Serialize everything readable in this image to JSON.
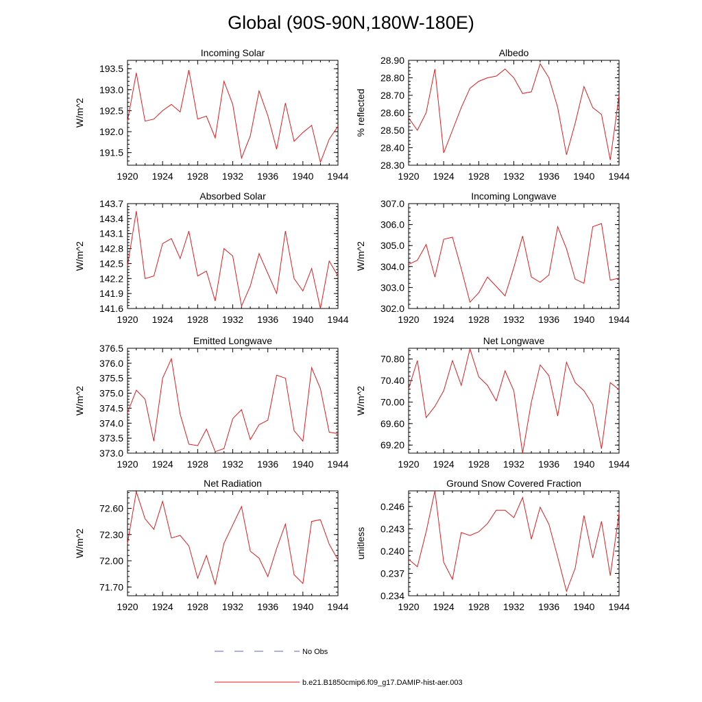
{
  "figure": {
    "title": "Global (90S-90N,180W-180E)"
  },
  "legend": {
    "obs_label": "No Obs",
    "obs_color": "#5a5fd0",
    "model_label": "b.e21.B1850cmip6.f09_g17.DAMIP-hist-aer.003",
    "model_color": "#e31a1c"
  },
  "chart_data": [
    {
      "type": "line",
      "title": "Incoming Solar",
      "ylabel": "W/m^2",
      "xlim": [
        1920,
        1944
      ],
      "ylim": [
        191.2,
        193.7
      ],
      "yticks": [
        191.5,
        192.0,
        192.5,
        193.0,
        193.5
      ],
      "ytick_labels": [
        "191.5",
        "192.0",
        "192.5",
        "193.0",
        "193.5"
      ],
      "xticks": [
        1920,
        1924,
        1928,
        1932,
        1936,
        1940,
        1944
      ],
      "series": [
        {
          "x": [
            1920,
            1921,
            1922,
            1923,
            1924,
            1925,
            1926,
            1927,
            1928,
            1929,
            1930,
            1931,
            1932,
            1933,
            1934,
            1935,
            1936,
            1937,
            1938,
            1939,
            1940,
            1941,
            1942,
            1943,
            1944
          ],
          "values": [
            192.25,
            193.4,
            192.25,
            192.3,
            192.5,
            192.65,
            192.47,
            193.47,
            192.3,
            192.37,
            191.85,
            193.2,
            192.65,
            191.37,
            191.9,
            192.97,
            192.38,
            191.58,
            192.68,
            191.77,
            191.98,
            192.15,
            191.27,
            191.82,
            192.13
          ]
        }
      ]
    },
    {
      "type": "line",
      "title": "Albedo",
      "ylabel": "% reflected",
      "xlim": [
        1920,
        1944
      ],
      "ylim": [
        28.3,
        28.9
      ],
      "yticks": [
        28.3,
        28.4,
        28.5,
        28.6,
        28.7,
        28.8,
        28.9
      ],
      "ytick_labels": [
        "28.30",
        "28.40",
        "28.50",
        "28.60",
        "28.70",
        "28.80",
        "28.90"
      ],
      "xticks": [
        1920,
        1924,
        1928,
        1932,
        1936,
        1940,
        1944
      ],
      "series": [
        {
          "x": [
            1920,
            1921,
            1922,
            1923,
            1924,
            1925,
            1926,
            1927,
            1928,
            1929,
            1930,
            1931,
            1932,
            1933,
            1934,
            1935,
            1936,
            1937,
            1938,
            1939,
            1940,
            1941,
            1942,
            1943,
            1944
          ],
          "values": [
            28.57,
            28.5,
            28.6,
            28.85,
            28.37,
            28.5,
            28.63,
            28.74,
            28.78,
            28.8,
            28.81,
            28.85,
            28.8,
            28.71,
            28.72,
            28.88,
            28.8,
            28.63,
            28.36,
            28.54,
            28.75,
            28.63,
            28.59,
            28.33,
            28.7
          ]
        }
      ]
    },
    {
      "type": "line",
      "title": "Absorbed Solar",
      "ylabel": "W/m^2",
      "xlim": [
        1920,
        1944
      ],
      "ylim": [
        141.6,
        143.7
      ],
      "yticks": [
        141.6,
        141.9,
        142.2,
        142.5,
        142.8,
        143.1,
        143.4,
        143.7
      ],
      "ytick_labels": [
        "141.6",
        "141.9",
        "142.2",
        "142.5",
        "142.8",
        "143.1",
        "143.4",
        "143.7"
      ],
      "xticks": [
        1920,
        1924,
        1928,
        1932,
        1936,
        1940,
        1944
      ],
      "series": [
        {
          "x": [
            1920,
            1921,
            1922,
            1923,
            1924,
            1925,
            1926,
            1927,
            1928,
            1929,
            1930,
            1931,
            1932,
            1933,
            1934,
            1935,
            1936,
            1937,
            1938,
            1939,
            1940,
            1941,
            1942,
            1943,
            1944
          ],
          "values": [
            142.45,
            143.55,
            142.2,
            142.25,
            142.9,
            143.0,
            142.6,
            143.15,
            142.25,
            142.35,
            141.75,
            142.8,
            142.65,
            141.65,
            142.05,
            142.7,
            142.3,
            141.9,
            143.15,
            142.2,
            141.95,
            142.4,
            141.6,
            142.55,
            142.25
          ]
        }
      ]
    },
    {
      "type": "line",
      "title": "Incoming Longwave",
      "ylabel": "W/m^2",
      "xlim": [
        1920,
        1944
      ],
      "ylim": [
        302.0,
        307.0
      ],
      "yticks": [
        302.0,
        303.0,
        304.0,
        305.0,
        306.0,
        307.0
      ],
      "ytick_labels": [
        "302.0",
        "303.0",
        "304.0",
        "305.0",
        "306.0",
        "307.0"
      ],
      "xticks": [
        1920,
        1924,
        1928,
        1932,
        1936,
        1940,
        1944
      ],
      "series": [
        {
          "x": [
            1920,
            1921,
            1922,
            1923,
            1924,
            1925,
            1926,
            1927,
            1928,
            1929,
            1930,
            1931,
            1932,
            1933,
            1934,
            1935,
            1936,
            1937,
            1938,
            1939,
            1940,
            1941,
            1942,
            1943,
            1944
          ],
          "values": [
            304.1,
            304.3,
            305.05,
            303.5,
            305.3,
            305.4,
            303.9,
            302.3,
            302.75,
            303.5,
            303.05,
            302.6,
            303.95,
            305.45,
            303.5,
            303.25,
            303.6,
            305.9,
            304.85,
            303.4,
            303.2,
            305.9,
            306.05,
            303.35,
            303.45
          ]
        }
      ]
    },
    {
      "type": "line",
      "title": "Emitted Longwave",
      "ylabel": "W/m^2",
      "xlim": [
        1920,
        1944
      ],
      "ylim": [
        373.0,
        376.5
      ],
      "yticks": [
        373.0,
        373.5,
        374.0,
        374.5,
        375.0,
        375.5,
        376.0,
        376.5
      ],
      "ytick_labels": [
        "373.0",
        "373.5",
        "374.0",
        "374.5",
        "375.0",
        "375.5",
        "376.0",
        "376.5"
      ],
      "xticks": [
        1920,
        1924,
        1928,
        1932,
        1936,
        1940,
        1944
      ],
      "series": [
        {
          "x": [
            1920,
            1921,
            1922,
            1923,
            1924,
            1925,
            1926,
            1927,
            1928,
            1929,
            1930,
            1931,
            1932,
            1933,
            1934,
            1935,
            1936,
            1937,
            1938,
            1939,
            1940,
            1941,
            1942,
            1943,
            1944
          ],
          "values": [
            374.35,
            375.1,
            374.8,
            373.4,
            375.5,
            376.15,
            374.3,
            373.3,
            373.25,
            373.8,
            373.05,
            373.15,
            374.15,
            374.45,
            373.45,
            373.95,
            374.1,
            375.6,
            375.5,
            373.75,
            373.4,
            375.85,
            375.15,
            373.7,
            373.65
          ]
        }
      ]
    },
    {
      "type": "line",
      "title": "Net Longwave",
      "ylabel": "W/m^2",
      "xlim": [
        1920,
        1944
      ],
      "ylim": [
        69.05,
        71.0
      ],
      "yticks": [
        69.2,
        69.6,
        70.0,
        70.4,
        70.8
      ],
      "ytick_labels": [
        "69.20",
        "69.60",
        "70.00",
        "70.40",
        "70.80"
      ],
      "xticks": [
        1920,
        1924,
        1928,
        1932,
        1936,
        1940,
        1944
      ],
      "series": [
        {
          "x": [
            1920,
            1921,
            1922,
            1923,
            1924,
            1925,
            1926,
            1927,
            1928,
            1929,
            1930,
            1931,
            1932,
            1933,
            1934,
            1935,
            1936,
            1937,
            1938,
            1939,
            1940,
            1941,
            1942,
            1943,
            1944
          ],
          "values": [
            70.25,
            70.77,
            69.71,
            69.92,
            70.21,
            70.77,
            70.31,
            70.99,
            70.47,
            70.31,
            70.02,
            70.58,
            70.21,
            69.05,
            70.0,
            70.69,
            70.49,
            69.74,
            70.74,
            70.36,
            70.21,
            69.95,
            69.13,
            70.36,
            70.23
          ]
        }
      ]
    },
    {
      "type": "line",
      "title": "Net Radiation",
      "ylabel": "W/m^2",
      "xlim": [
        1920,
        1944
      ],
      "ylim": [
        71.6,
        72.8
      ],
      "yticks": [
        71.7,
        72.0,
        72.3,
        72.6
      ],
      "ytick_labels": [
        "71.70",
        "72.00",
        "72.30",
        "72.60"
      ],
      "xticks": [
        1920,
        1924,
        1928,
        1932,
        1936,
        1940,
        1944
      ],
      "series": [
        {
          "x": [
            1920,
            1921,
            1922,
            1923,
            1924,
            1925,
            1926,
            1927,
            1928,
            1929,
            1930,
            1931,
            1932,
            1933,
            1934,
            1935,
            1936,
            1937,
            1938,
            1939,
            1940,
            1941,
            1942,
            1943,
            1944
          ],
          "values": [
            72.2,
            72.79,
            72.48,
            72.36,
            72.68,
            72.26,
            72.29,
            72.17,
            71.8,
            72.06,
            71.73,
            72.2,
            72.41,
            72.62,
            72.11,
            72.03,
            71.82,
            72.14,
            72.42,
            71.84,
            71.74,
            72.45,
            72.47,
            72.19,
            72.01
          ]
        }
      ]
    },
    {
      "type": "line",
      "title": "Ground Snow Covered Fraction",
      "ylabel": "unitless",
      "xlim": [
        1920,
        1944
      ],
      "ylim": [
        0.234,
        0.2481
      ],
      "yticks": [
        0.234,
        0.237,
        0.24,
        0.243,
        0.246
      ],
      "ytick_labels": [
        "0.234",
        "0.237",
        "0.240",
        "0.243",
        "0.246"
      ],
      "xticks": [
        1920,
        1924,
        1928,
        1932,
        1936,
        1940,
        1944
      ],
      "series": [
        {
          "x": [
            1920,
            1921,
            1922,
            1923,
            1924,
            1925,
            1926,
            1927,
            1928,
            1929,
            1930,
            1931,
            1932,
            1933,
            1934,
            1935,
            1936,
            1937,
            1938,
            1939,
            1940,
            1941,
            1942,
            1943,
            1944
          ],
          "values": [
            0.2389,
            0.2379,
            0.2426,
            0.2481,
            0.2385,
            0.2362,
            0.2425,
            0.2421,
            0.2426,
            0.2437,
            0.2455,
            0.2455,
            0.2445,
            0.2472,
            0.2416,
            0.2459,
            0.2436,
            0.2392,
            0.2346,
            0.2377,
            0.2448,
            0.2391,
            0.244,
            0.2367,
            0.2451
          ]
        }
      ]
    }
  ]
}
